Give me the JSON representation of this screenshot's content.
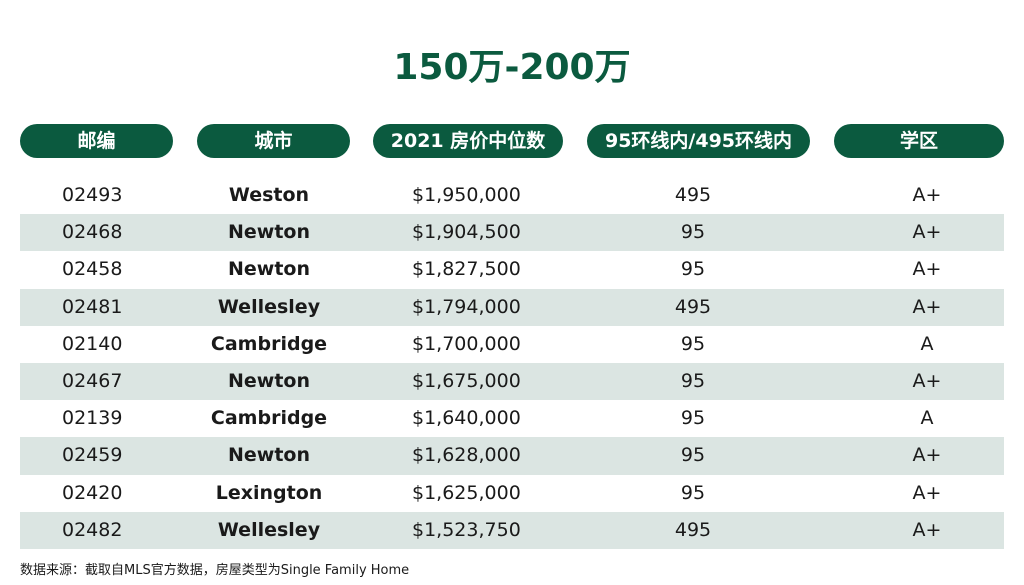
{
  "title": "150万-200万",
  "columns": [
    "邮编",
    "城市",
    "2021 房价中位数",
    "95环线内/495环线内",
    "学区"
  ],
  "rows": [
    {
      "zip": "02493",
      "city": "Weston",
      "price": "$1,950,000",
      "ring": "495",
      "school": "A+"
    },
    {
      "zip": "02468",
      "city": "Newton",
      "price": "$1,904,500",
      "ring": "95",
      "school": "A+"
    },
    {
      "zip": "02458",
      "city": "Newton",
      "price": "$1,827,500",
      "ring": "95",
      "school": "A+"
    },
    {
      "zip": "02481",
      "city": "Wellesley",
      "price": "$1,794,000",
      "ring": "495",
      "school": "A+"
    },
    {
      "zip": "02140",
      "city": "Cambridge",
      "price": "$1,700,000",
      "ring": "95",
      "school": "A"
    },
    {
      "zip": "02467",
      "city": "Newton",
      "price": "$1,675,000",
      "ring": "95",
      "school": "A+"
    },
    {
      "zip": "02139",
      "city": "Cambridge",
      "price": "$1,640,000",
      "ring": "95",
      "school": "A"
    },
    {
      "zip": "02459",
      "city": "Newton",
      "price": "$1,628,000",
      "ring": "95",
      "school": "A+"
    },
    {
      "zip": "02420",
      "city": "Lexington",
      "price": "$1,625,000",
      "ring": "95",
      "school": "A+"
    },
    {
      "zip": "02482",
      "city": "Wellesley",
      "price": "$1,523,750",
      "ring": "495",
      "school": "A+"
    }
  ],
  "footnote": "数据来源：截取自MLS官方数据，房屋类型为Single Family Home",
  "colors": {
    "accent": "#0b5a3f",
    "row_alt": "#dbe5e2"
  }
}
